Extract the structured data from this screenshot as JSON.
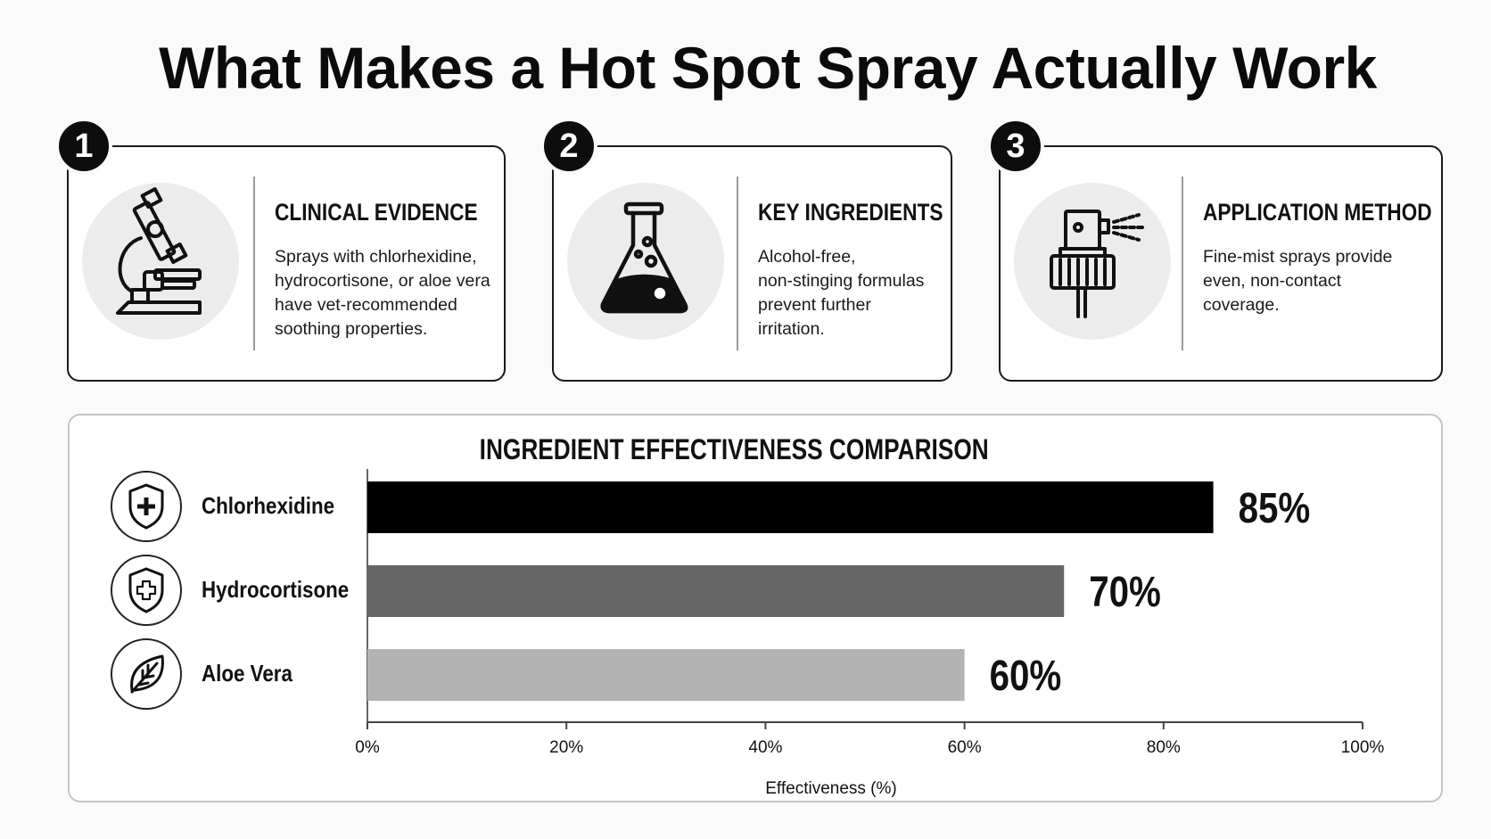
{
  "title": "What Makes a Hot Spot Spray Actually Work",
  "cards": [
    {
      "number": "1",
      "heading": "CLINICAL EVIDENCE",
      "lines": [
        "Sprays with chlorhexidine,",
        "hydrocortisone, or aloe vera",
        "have vet-recommended",
        "soothing properties."
      ],
      "icon": "microscope-icon"
    },
    {
      "number": "2",
      "heading": "KEY INGREDIENTS",
      "lines": [
        "Alcohol-free,",
        "non-stinging formulas",
        "prevent further",
        "irritation."
      ],
      "icon": "flask-icon"
    },
    {
      "number": "3",
      "heading": "APPLICATION METHOD",
      "lines": [
        "Fine-mist sprays provide",
        "even, non-contact",
        "coverage."
      ],
      "icon": "spray-bottle-icon"
    }
  ],
  "chart_data": {
    "type": "bar",
    "orientation": "horizontal",
    "title": "INGREDIENT EFFECTIVENESS COMPARISON",
    "categories": [
      "Chlorhexidine",
      "Hydrocortisone",
      "Aloe Vera"
    ],
    "values": [
      85,
      70,
      60
    ],
    "value_labels": [
      "85%",
      "70%",
      "60%"
    ],
    "category_icons": [
      "shield-plus-icon",
      "shield-plus-outline-icon",
      "leaf-icon"
    ],
    "bar_colors": [
      "#000000",
      "#666666",
      "#b3b3b3"
    ],
    "xlabel": "Effectiveness (%)",
    "ylabel": "",
    "xlim": [
      0,
      100
    ],
    "xticks": [
      0,
      20,
      40,
      60,
      80,
      100
    ],
    "xtick_labels": [
      "0%",
      "20%",
      "40%",
      "60%",
      "80%",
      "100%"
    ],
    "grid": false,
    "legend": "none"
  }
}
